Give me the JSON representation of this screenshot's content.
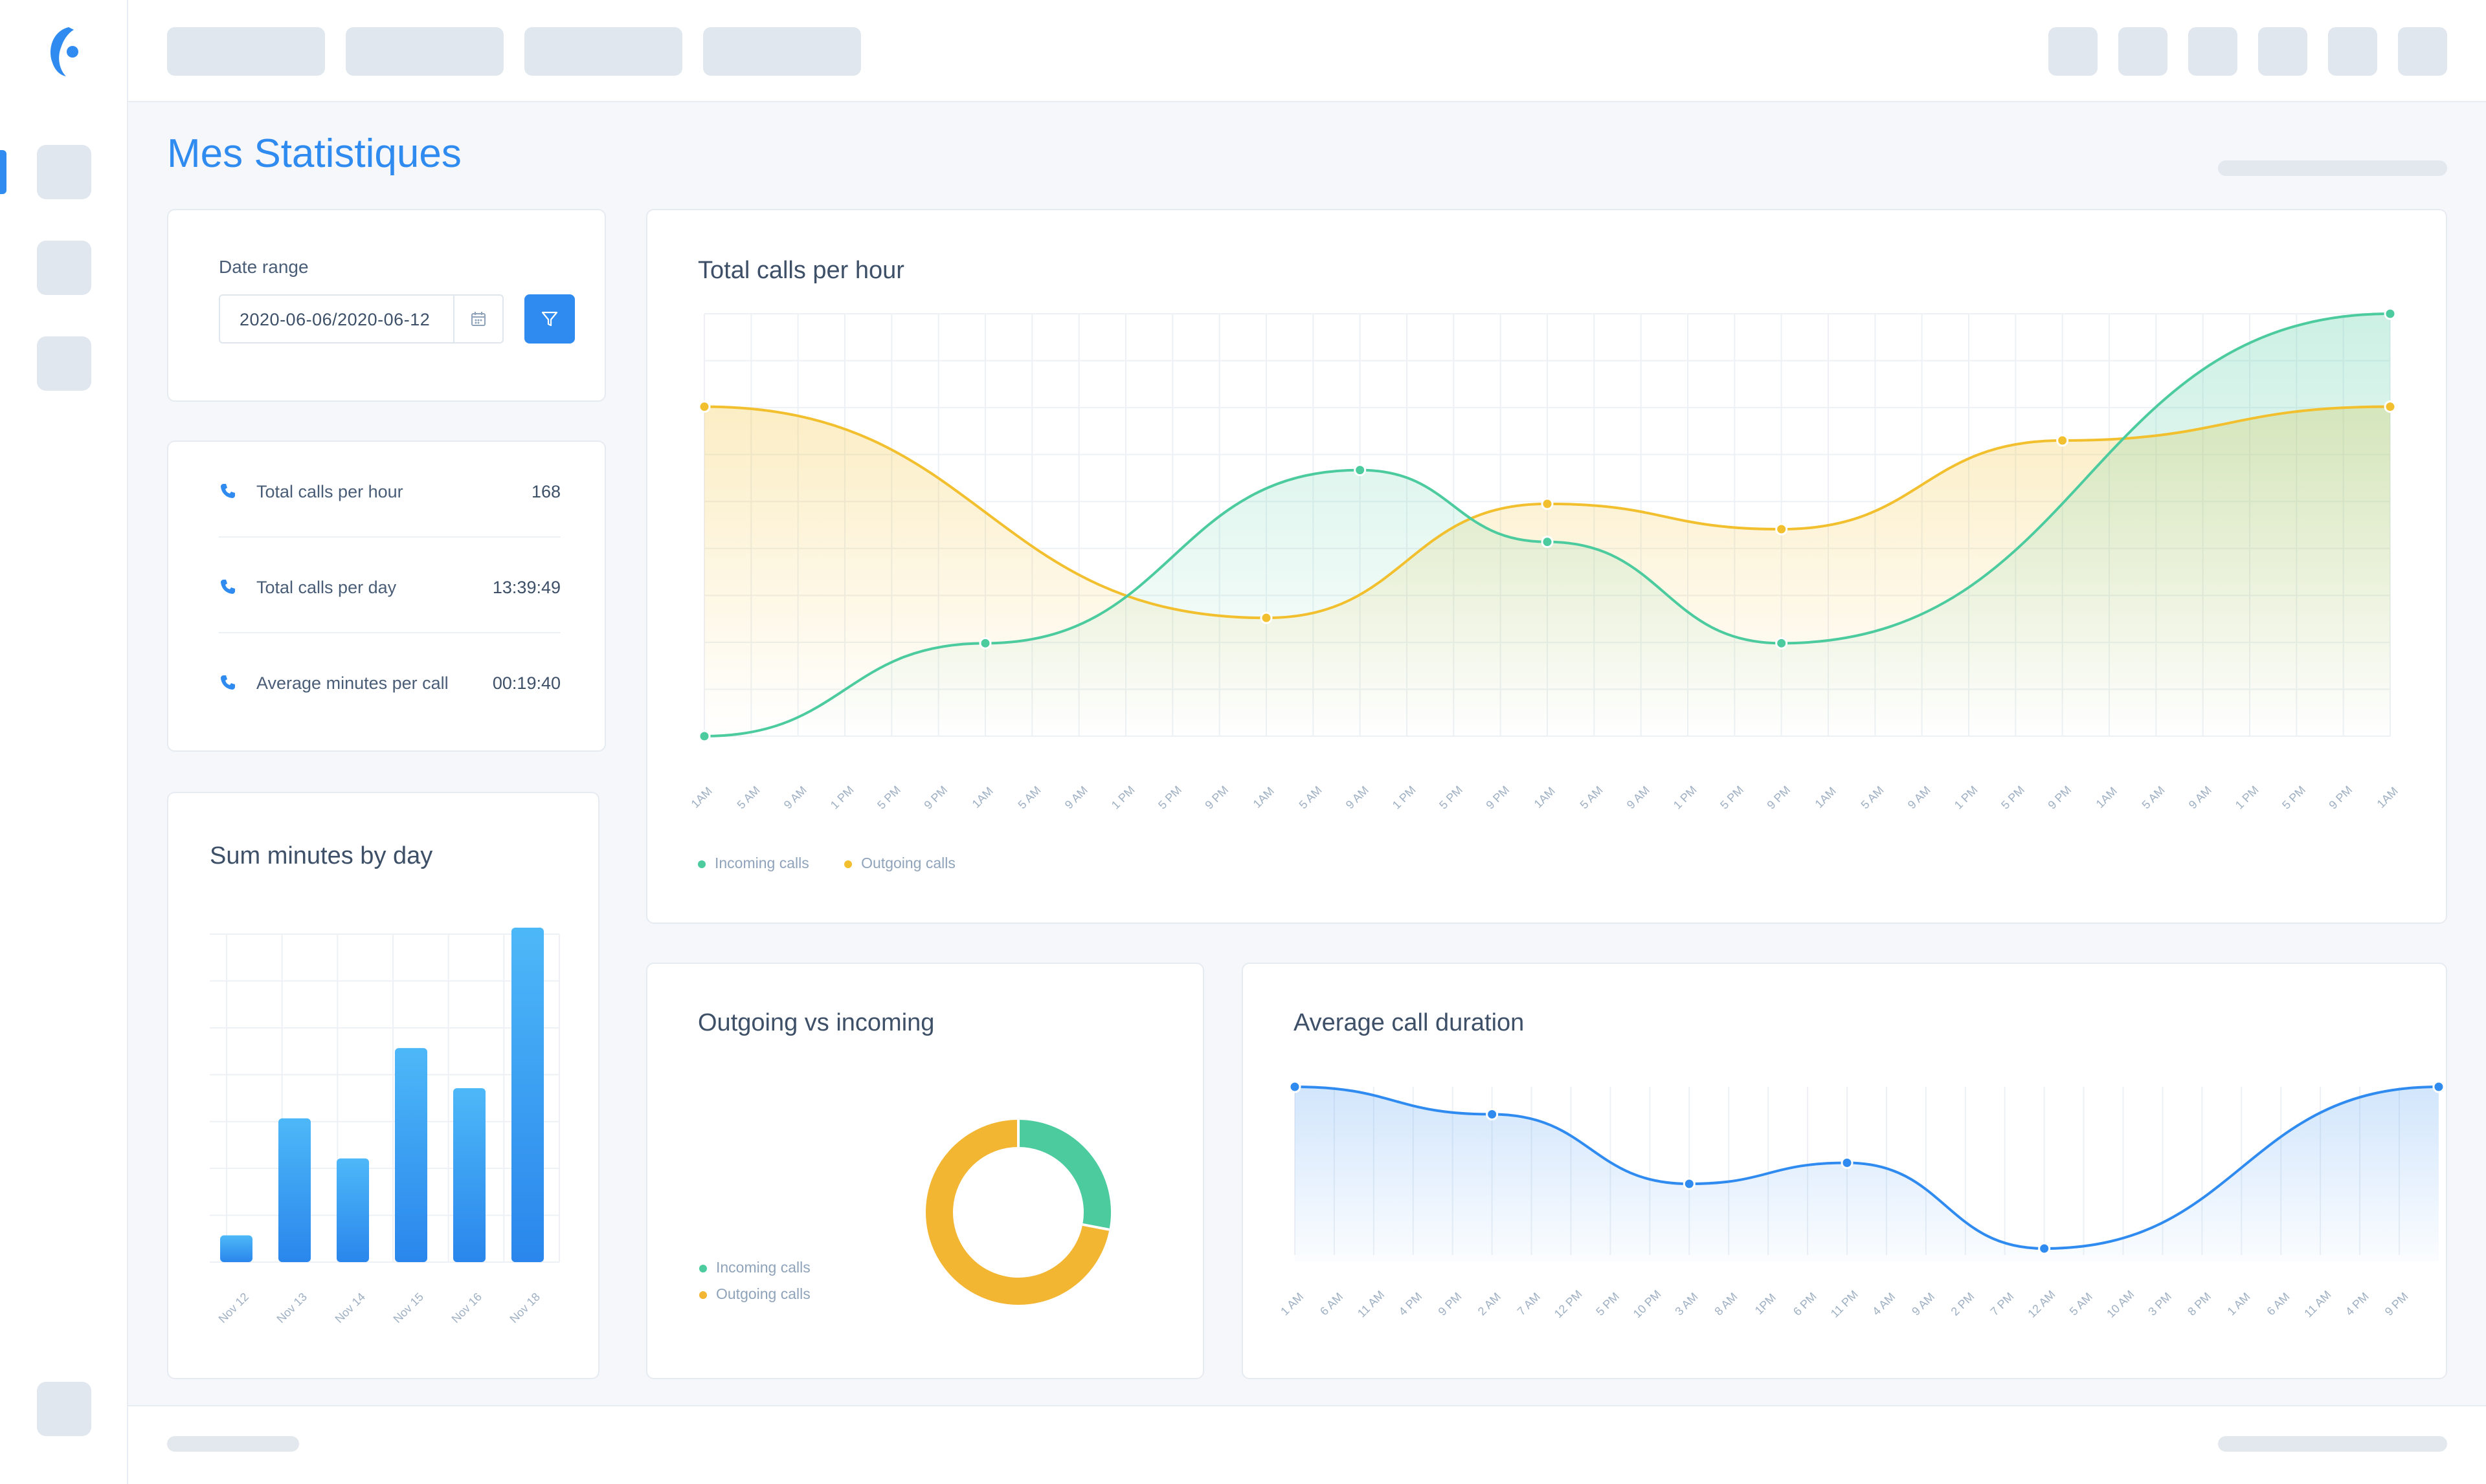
{
  "page": {
    "title": "Mes Statistiques"
  },
  "filters": {
    "date_label": "Date range",
    "date_value": "2020-06-06/2020-06-12",
    "calendar_icon": "calendar-icon",
    "filter_icon": "filter-icon"
  },
  "summary": {
    "items": [
      {
        "icon": "phone-icon",
        "label": "Total calls per hour",
        "value": "168"
      },
      {
        "icon": "phone-icon",
        "label": "Total calls per day",
        "value": "13:39:49"
      },
      {
        "icon": "phone-icon",
        "label": "Average minutes per call",
        "value": "00:19:40"
      }
    ]
  },
  "colors": {
    "accent": "#2f8bf0",
    "incoming": "#4ccb9f",
    "outgoing": "#f2c02e",
    "bar_top": "#4db8f8",
    "bar_bottom": "#2a86ec"
  },
  "chart_data": [
    {
      "id": "calls-per-hour",
      "type": "line",
      "title": "Total calls per hour",
      "x": [
        "1AM",
        "5 AM",
        "9 AM",
        "1 PM",
        "5 PM",
        "9 PM",
        "1AM",
        "5 AM",
        "9 AM",
        "1 PM",
        "5 PM",
        "9 PM",
        "1AM",
        "5 AM",
        "9 AM",
        "1 PM",
        "5 PM",
        "9 PM",
        "1AM",
        "5 AM",
        "9 AM",
        "1 PM",
        "5 PM",
        "9 PM",
        "1AM",
        "5 AM",
        "9 AM",
        "1 PM",
        "5 PM",
        "9 PM",
        "1AM",
        "5 AM",
        "9 AM",
        "1 PM",
        "5 PM",
        "9 PM",
        "1AM"
      ],
      "series": [
        {
          "name": "Incoming calls",
          "points": [
            [
              0,
              0
            ],
            [
              6,
              22
            ],
            [
              14,
              63
            ],
            [
              18,
              46
            ],
            [
              23,
              22
            ],
            [
              36,
              100
            ]
          ]
        },
        {
          "name": "Outgoing calls",
          "points": [
            [
              0,
              78
            ],
            [
              12,
              28
            ],
            [
              18,
              55
            ],
            [
              23,
              49
            ],
            [
              29,
              70
            ],
            [
              36,
              78
            ]
          ]
        }
      ],
      "ylim": [
        0,
        100
      ],
      "grid": true,
      "legend": "bottom-left"
    },
    {
      "id": "sum-minutes-by-day",
      "type": "bar",
      "title": "Sum minutes by day",
      "categories": [
        "Nov 12",
        "Nov 13",
        "Nov 14",
        "Nov 15",
        "Nov 16",
        "Nov 18"
      ],
      "values": [
        8,
        43,
        31,
        64,
        52,
        100
      ],
      "ylim": [
        0,
        100
      ],
      "grid": true
    },
    {
      "id": "outgoing-vs-incoming",
      "type": "pie",
      "title": "Outgoing vs incoming",
      "labels": [
        "Incoming calls",
        "Outgoing calls"
      ],
      "values": [
        28,
        72
      ],
      "legend": "left"
    },
    {
      "id": "average-call-duration",
      "type": "area",
      "title": "Average call duration",
      "x": [
        "1 AM",
        "6 AM",
        "11 AM",
        "4 PM",
        "9 PM",
        "2 AM",
        "7 AM",
        "12 PM",
        "5 PM",
        "10 PM",
        "3 AM",
        "8 AM",
        "1PM",
        "6 PM",
        "11 PM",
        "4 AM",
        "9 AM",
        "2 PM",
        "7 PM",
        "12 AM",
        "5 AM",
        "10 AM",
        "3 PM",
        "8 PM",
        "1 AM",
        "6 AM",
        "11 AM",
        "4 PM",
        "9 PM"
      ],
      "series": [
        {
          "name": "",
          "points": [
            [
              0,
              100
            ],
            [
              5,
              83
            ],
            [
              10,
              40
            ],
            [
              14,
              53
            ],
            [
              19,
              0
            ],
            [
              29,
              100
            ]
          ]
        }
      ],
      "ylim": [
        0,
        100
      ],
      "grid": true
    }
  ]
}
